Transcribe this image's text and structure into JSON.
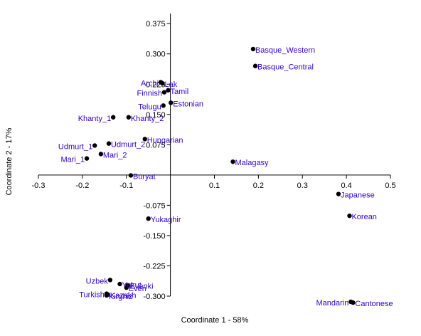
{
  "chart_data": {
    "type": "scatter",
    "title": "",
    "xlabel": "Coordinate 1 - 58%",
    "ylabel": "Coordinate 2 - 17%",
    "xlim": [
      -0.3,
      0.5
    ],
    "ylim": [
      -0.3,
      0.4
    ],
    "xticks": [
      -0.3,
      -0.2,
      -0.1,
      0.1,
      0.2,
      0.3,
      0.4,
      0.5
    ],
    "yticks": [
      0.375,
      0.3,
      0.225,
      0.15,
      0.075,
      -0.075,
      -0.15,
      -0.225,
      -0.3
    ],
    "xtick_labels": [
      "-0.3",
      "-0.2",
      "-0.1",
      "0.1",
      "0.2",
      "0.3",
      "0.4",
      "0.5"
    ],
    "ytick_labels": [
      "0.375",
      "0.300",
      "0.225",
      "0.150",
      "0.075",
      "-0.075",
      "-0.150",
      "-0.225",
      "-0.300"
    ],
    "grid": false,
    "point_color": "#000000",
    "label_color": "#3300cc",
    "points": [
      {
        "label": "Basque_Western",
        "x": 0.188,
        "y": 0.312,
        "anchor": "start"
      },
      {
        "label": "Basque_Central",
        "x": 0.193,
        "y": 0.27,
        "anchor": "start"
      },
      {
        "label": "Archi",
        "x": -0.022,
        "y": 0.23,
        "anchor": "end"
      },
      {
        "label": "Lak",
        "x": -0.018,
        "y": 0.227,
        "anchor": "start"
      },
      {
        "label": "Tamil",
        "x": -0.005,
        "y": 0.21,
        "anchor": "start"
      },
      {
        "label": "Finnish",
        "x": -0.014,
        "y": 0.205,
        "anchor": "end"
      },
      {
        "label": "Estonian",
        "x": 0.001,
        "y": 0.179,
        "anchor": "start"
      },
      {
        "label": "Telugu",
        "x": -0.016,
        "y": 0.172,
        "anchor": "end"
      },
      {
        "label": "Khanty_1",
        "x": -0.13,
        "y": 0.143,
        "anchor": "end"
      },
      {
        "label": "Khanty_2",
        "x": -0.095,
        "y": 0.143,
        "anchor": "start"
      },
      {
        "label": "Hungarian",
        "x": -0.058,
        "y": 0.089,
        "anchor": "start"
      },
      {
        "label": "Udmurt_2",
        "x": -0.14,
        "y": 0.078,
        "anchor": "start"
      },
      {
        "label": "Udmurt_1",
        "x": -0.172,
        "y": 0.073,
        "anchor": "end"
      },
      {
        "label": "Mari_2",
        "x": -0.158,
        "y": 0.052,
        "anchor": "start"
      },
      {
        "label": "Mari_1",
        "x": -0.19,
        "y": 0.041,
        "anchor": "end"
      },
      {
        "label": "Malagasy",
        "x": 0.142,
        "y": 0.033,
        "anchor": "start"
      },
      {
        "label": "Buryat",
        "x": -0.09,
        "y": -0.001,
        "anchor": "start"
      },
      {
        "label": "Japanese",
        "x": 0.382,
        "y": -0.047,
        "anchor": "start"
      },
      {
        "label": "Korean",
        "x": 0.407,
        "y": -0.101,
        "anchor": "start"
      },
      {
        "label": "Yukaghir",
        "x": -0.05,
        "y": -0.108,
        "anchor": "start"
      },
      {
        "label": "Uzbek",
        "x": -0.137,
        "y": -0.26,
        "anchor": "end"
      },
      {
        "label": "Yakut",
        "x": -0.115,
        "y": -0.27,
        "anchor": "start"
      },
      {
        "label": "Evenki",
        "x": -0.097,
        "y": -0.273,
        "anchor": "start"
      },
      {
        "label": "Even",
        "x": -0.1,
        "y": -0.279,
        "anchor": "start"
      },
      {
        "label": "Turkish",
        "x": -0.145,
        "y": -0.294,
        "anchor": "end"
      },
      {
        "label": "Kazakh",
        "x": -0.142,
        "y": -0.296,
        "anchor": "start"
      },
      {
        "label": "Kirghiz",
        "x": -0.145,
        "y": -0.298,
        "anchor": "start"
      },
      {
        "label": "Mandarin",
        "x": 0.41,
        "y": -0.314,
        "anchor": "end"
      },
      {
        "label": "Cantonese",
        "x": 0.415,
        "y": -0.316,
        "anchor": "start"
      }
    ]
  }
}
